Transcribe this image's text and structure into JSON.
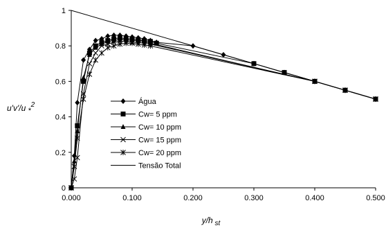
{
  "chart_data": {
    "type": "line",
    "xlabel": "y/h st",
    "ylabel": "u'v'/u *2",
    "xlim": [
      0,
      0.5
    ],
    "ylim": [
      0,
      1
    ],
    "x_ticks": [
      "0.000",
      "0.100",
      "0.200",
      "0.300",
      "0.400",
      "0.500"
    ],
    "y_ticks": [
      "0",
      "0.2",
      "0.4",
      "0.6",
      "0.8",
      "1"
    ],
    "grid": false,
    "legend_position": "center-left",
    "series": [
      {
        "name": "Água",
        "marker": "diamond",
        "color": "#000000",
        "x": [
          0.0,
          0.005,
          0.01,
          0.02,
          0.03,
          0.04,
          0.05,
          0.06,
          0.07,
          0.08,
          0.09,
          0.1,
          0.11,
          0.12,
          0.13,
          0.14,
          0.2,
          0.25,
          0.3,
          0.35,
          0.4,
          0.45,
          0.5
        ],
        "y": [
          0.0,
          0.18,
          0.48,
          0.72,
          0.78,
          0.83,
          0.84,
          0.855,
          0.86,
          0.86,
          0.855,
          0.85,
          0.845,
          0.84,
          0.83,
          0.82,
          0.8,
          0.75,
          0.7,
          0.65,
          0.6,
          0.55,
          0.5
        ]
      },
      {
        "name": "Cw= 5 ppm",
        "marker": "square",
        "color": "#000000",
        "x": [
          0.0,
          0.01,
          0.02,
          0.03,
          0.04,
          0.05,
          0.06,
          0.07,
          0.08,
          0.09,
          0.1,
          0.11,
          0.12,
          0.13,
          0.14,
          0.3,
          0.35,
          0.4,
          0.45,
          0.5
        ],
        "y": [
          0.0,
          0.35,
          0.6,
          0.76,
          0.8,
          0.82,
          0.83,
          0.84,
          0.845,
          0.84,
          0.84,
          0.835,
          0.83,
          0.825,
          0.815,
          0.7,
          0.65,
          0.6,
          0.55,
          0.5
        ]
      },
      {
        "name": "Cw= 10 ppm",
        "marker": "triangle",
        "color": "#000000",
        "x": [
          0.0,
          0.005,
          0.01,
          0.02,
          0.03,
          0.04,
          0.05,
          0.06,
          0.07,
          0.08,
          0.09,
          0.1,
          0.11,
          0.12,
          0.13,
          0.4,
          0.45,
          0.5
        ],
        "y": [
          0.0,
          0.15,
          0.32,
          0.62,
          0.75,
          0.79,
          0.81,
          0.825,
          0.83,
          0.835,
          0.835,
          0.83,
          0.83,
          0.825,
          0.815,
          0.6,
          0.55,
          0.5
        ]
      },
      {
        "name": "Cw= 15 ppm",
        "marker": "x",
        "color": "#000000",
        "x": [
          0.0,
          0.005,
          0.01,
          0.02,
          0.03,
          0.04,
          0.05,
          0.06,
          0.07,
          0.08,
          0.09,
          0.1,
          0.11,
          0.12,
          0.13,
          0.4,
          0.45,
          0.5
        ],
        "y": [
          0.0,
          0.05,
          0.17,
          0.53,
          0.7,
          0.76,
          0.8,
          0.81,
          0.82,
          0.825,
          0.825,
          0.82,
          0.82,
          0.815,
          0.81,
          0.6,
          0.55,
          0.5
        ]
      },
      {
        "name": "Cw= 20 ppm",
        "marker": "star",
        "color": "#000000",
        "x": [
          0.0,
          0.005,
          0.01,
          0.02,
          0.03,
          0.04,
          0.05,
          0.06,
          0.07,
          0.08,
          0.09,
          0.1,
          0.11,
          0.12,
          0.13,
          0.4,
          0.45,
          0.5
        ],
        "y": [
          0.0,
          0.12,
          0.28,
          0.5,
          0.64,
          0.72,
          0.76,
          0.79,
          0.8,
          0.81,
          0.815,
          0.815,
          0.81,
          0.805,
          0.8,
          0.6,
          0.55,
          0.5
        ]
      },
      {
        "name": "Tensão Total",
        "marker": "none",
        "color": "#000000",
        "x": [
          0.0,
          0.5
        ],
        "y": [
          1.0,
          0.5
        ]
      }
    ]
  }
}
